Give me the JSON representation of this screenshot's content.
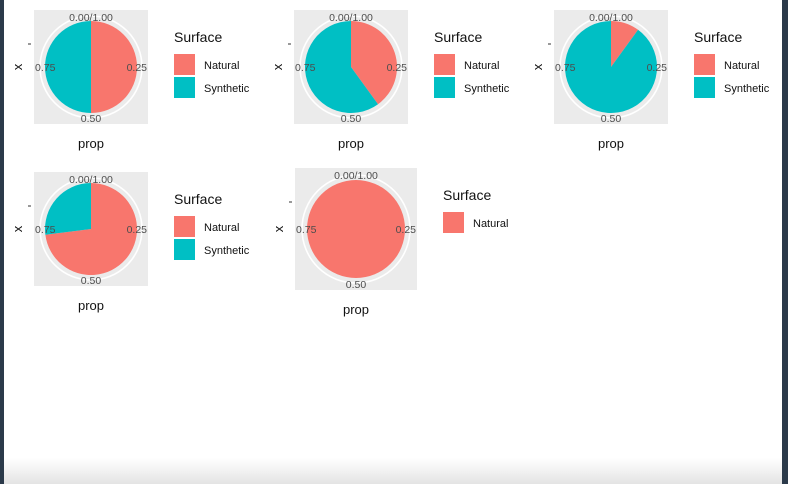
{
  "colors": {
    "natural": "#F8766D",
    "synthetic": "#00BFC4",
    "panel": "#EBEBEB",
    "grid": "#FFFFFF"
  },
  "chart_data": [
    {
      "type": "pie",
      "xlabel": "prop",
      "ylabel": "x",
      "angle_ticks": [
        "0.00/1.00",
        "0.25",
        "0.50",
        "0.75"
      ],
      "legend": {
        "title": "Surface",
        "position": "right",
        "entries": [
          "Natural",
          "Synthetic"
        ]
      },
      "slices": [
        {
          "name": "Natural",
          "value": 0.5
        },
        {
          "name": "Synthetic",
          "value": 0.5
        }
      ]
    },
    {
      "type": "pie",
      "xlabel": "prop",
      "ylabel": "x",
      "angle_ticks": [
        "0.00/1.00",
        "0.25",
        "0.50",
        "0.75"
      ],
      "legend": {
        "title": "Surface",
        "position": "right",
        "entries": [
          "Natural",
          "Synthetic"
        ]
      },
      "slices": [
        {
          "name": "Natural",
          "value": 0.4
        },
        {
          "name": "Synthetic",
          "value": 0.6
        }
      ]
    },
    {
      "type": "pie",
      "xlabel": "prop",
      "ylabel": "x",
      "angle_ticks": [
        "0.00/1.00",
        "0.25",
        "0.50",
        "0.75"
      ],
      "legend": {
        "title": "Surface",
        "position": "right",
        "entries": [
          "Natural",
          "Synthetic"
        ]
      },
      "slices": [
        {
          "name": "Natural",
          "value": 0.1
        },
        {
          "name": "Synthetic",
          "value": 0.9
        }
      ]
    },
    {
      "type": "pie",
      "xlabel": "prop",
      "ylabel": "x",
      "angle_ticks": [
        "0.00/1.00",
        "0.25",
        "0.50",
        "0.75"
      ],
      "legend": {
        "title": "Surface",
        "position": "right",
        "entries": [
          "Natural",
          "Synthetic"
        ]
      },
      "slices": [
        {
          "name": "Natural",
          "value": 0.73
        },
        {
          "name": "Synthetic",
          "value": 0.27
        }
      ]
    },
    {
      "type": "pie",
      "xlabel": "prop",
      "ylabel": "x",
      "angle_ticks": [
        "0.00/1.00",
        "0.25",
        "0.50",
        "0.75"
      ],
      "legend": {
        "title": "Surface",
        "position": "right",
        "entries": [
          "Natural"
        ]
      },
      "slices": [
        {
          "name": "Natural",
          "value": 1.0
        }
      ]
    }
  ]
}
